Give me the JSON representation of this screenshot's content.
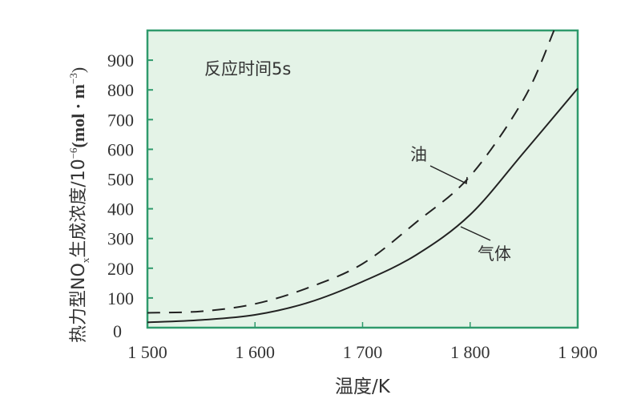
{
  "chart_data": {
    "type": "line",
    "title": "",
    "annotation": "反应时间5s",
    "xlabel": "温度/K",
    "ylabel": "热力型NOx生成浓度/10⁻⁶(mol·m⁻³)",
    "ylabel_parts": {
      "main": "热力型NO",
      "sub": "x",
      "rest": "生成浓度/10",
      "sup": "−6",
      "unit": "(mol · m",
      "unit_sup": "−3",
      "close": ")"
    },
    "xlim": [
      1500,
      1900
    ],
    "ylim": [
      0,
      1000
    ],
    "x_ticks": [
      1500,
      1600,
      1700,
      1800,
      1900
    ],
    "x_tick_labels": [
      "1 500",
      "1 600",
      "1 700",
      "1 800",
      "1 900"
    ],
    "y_ticks": [
      0,
      100,
      200,
      300,
      400,
      500,
      600,
      700,
      800,
      900
    ],
    "y_tick_labels": [
      "0",
      "100",
      "200",
      "300",
      "400",
      "500",
      "600",
      "700",
      "800",
      "900"
    ],
    "grid": false,
    "series": [
      {
        "name": "油",
        "style": "dashed",
        "x": [
          1500,
          1550,
          1600,
          1650,
          1700,
          1750,
          1800,
          1850,
          1878
        ],
        "y": [
          50,
          55,
          80,
          135,
          215,
          355,
          510,
          770,
          1000
        ]
      },
      {
        "name": "气体",
        "style": "solid",
        "x": [
          1500,
          1550,
          1600,
          1650,
          1700,
          1750,
          1800,
          1850,
          1900
        ],
        "y": [
          18,
          26,
          43,
          85,
          155,
          245,
          380,
          590,
          805
        ]
      }
    ],
    "colors": {
      "plot_bg": "#e4f3e7",
      "frame": "#2f9a6c",
      "line": "#222222"
    }
  }
}
